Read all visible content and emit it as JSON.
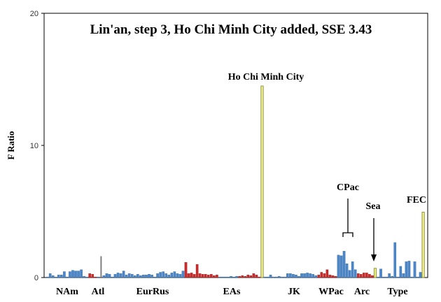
{
  "chart_data": {
    "type": "bar",
    "title": "Lin'an, step 3, Ho Chi Minh City added, SSE 3.43",
    "ylabel": "F Ratio",
    "ylim": [
      0,
      20
    ],
    "yticks": [
      "0",
      "10",
      "20"
    ],
    "groups": [
      "NAm",
      "Atl",
      "EurRus",
      "EAs",
      "JK",
      "WPac",
      "Arc",
      "Type"
    ],
    "annotations": {
      "hcmc": "Ho Chi Minh City",
      "cpac": "CPac",
      "sea": "Sea",
      "fec": "FEC"
    },
    "colors": {
      "blue": "#4a86c8",
      "red": "#cc2a2a",
      "yellow": "#f0f08c",
      "gray": "#808080"
    },
    "bars": [
      {
        "v": 0.05,
        "c": "blue"
      },
      {
        "v": 0.3,
        "c": "blue"
      },
      {
        "v": 0.15,
        "c": "blue"
      },
      {
        "v": 0.05,
        "c": "blue"
      },
      {
        "v": 0.2,
        "c": "blue"
      },
      {
        "v": 0.2,
        "c": "blue"
      },
      {
        "v": 0.45,
        "c": "blue"
      },
      {
        "v": 0.05,
        "c": "blue"
      },
      {
        "v": 0.45,
        "c": "blue"
      },
      {
        "v": 0.55,
        "c": "blue"
      },
      {
        "v": 0.5,
        "c": "blue"
      },
      {
        "v": 0.5,
        "c": "blue"
      },
      {
        "v": 0.6,
        "c": "blue"
      },
      {
        "v": 0.1,
        "c": "blue"
      },
      {
        "v": 0.05,
        "c": "blue"
      },
      {
        "v": 0.3,
        "c": "red"
      },
      {
        "v": 0.25,
        "c": "red"
      },
      {
        "v": 0.05,
        "c": "red"
      },
      {
        "v": 0.05,
        "c": "blue"
      },
      {
        "v": 1.6,
        "c": "gray"
      },
      {
        "v": 0.15,
        "c": "blue"
      },
      {
        "v": 0.3,
        "c": "blue"
      },
      {
        "v": 0.25,
        "c": "blue"
      },
      {
        "v": 0.05,
        "c": "blue"
      },
      {
        "v": 0.25,
        "c": "blue"
      },
      {
        "v": 0.35,
        "c": "blue"
      },
      {
        "v": 0.3,
        "c": "blue"
      },
      {
        "v": 0.5,
        "c": "blue"
      },
      {
        "v": 0.2,
        "c": "blue"
      },
      {
        "v": 0.3,
        "c": "blue"
      },
      {
        "v": 0.25,
        "c": "blue"
      },
      {
        "v": 0.15,
        "c": "blue"
      },
      {
        "v": 0.25,
        "c": "blue"
      },
      {
        "v": 0.15,
        "c": "blue"
      },
      {
        "v": 0.2,
        "c": "blue"
      },
      {
        "v": 0.2,
        "c": "blue"
      },
      {
        "v": 0.25,
        "c": "blue"
      },
      {
        "v": 0.2,
        "c": "blue"
      },
      {
        "v": 0.05,
        "c": "blue"
      },
      {
        "v": 0.3,
        "c": "blue"
      },
      {
        "v": 0.4,
        "c": "blue"
      },
      {
        "v": 0.45,
        "c": "blue"
      },
      {
        "v": 0.3,
        "c": "blue"
      },
      {
        "v": 0.2,
        "c": "blue"
      },
      {
        "v": 0.35,
        "c": "blue"
      },
      {
        "v": 0.45,
        "c": "blue"
      },
      {
        "v": 0.3,
        "c": "blue"
      },
      {
        "v": 0.25,
        "c": "blue"
      },
      {
        "v": 0.5,
        "c": "blue"
      },
      {
        "v": 1.15,
        "c": "red"
      },
      {
        "v": 0.3,
        "c": "red"
      },
      {
        "v": 0.35,
        "c": "red"
      },
      {
        "v": 0.25,
        "c": "red"
      },
      {
        "v": 1.0,
        "c": "red"
      },
      {
        "v": 0.3,
        "c": "red"
      },
      {
        "v": 0.25,
        "c": "red"
      },
      {
        "v": 0.25,
        "c": "red"
      },
      {
        "v": 0.2,
        "c": "red"
      },
      {
        "v": 0.25,
        "c": "red"
      },
      {
        "v": 0.15,
        "c": "red"
      },
      {
        "v": 0.2,
        "c": "red"
      },
      {
        "v": 0.05,
        "c": "blue"
      },
      {
        "v": 0.05,
        "c": "blue"
      },
      {
        "v": 0.05,
        "c": "blue"
      },
      {
        "v": 0.05,
        "c": "blue"
      },
      {
        "v": 0.1,
        "c": "blue"
      },
      {
        "v": 0.05,
        "c": "blue"
      },
      {
        "v": 0.1,
        "c": "blue"
      },
      {
        "v": 0.1,
        "c": "red"
      },
      {
        "v": 0.15,
        "c": "red"
      },
      {
        "v": 0.1,
        "c": "red"
      },
      {
        "v": 0.2,
        "c": "red"
      },
      {
        "v": 0.15,
        "c": "red"
      },
      {
        "v": 0.3,
        "c": "red"
      },
      {
        "v": 0.2,
        "c": "red"
      },
      {
        "v": 0.05,
        "c": "red"
      },
      {
        "v": 14.5,
        "c": "yellow"
      },
      {
        "v": 0.05,
        "c": "blue"
      },
      {
        "v": 0.05,
        "c": "blue"
      },
      {
        "v": 0.2,
        "c": "blue"
      },
      {
        "v": 0.05,
        "c": "blue"
      },
      {
        "v": 0.05,
        "c": "blue"
      },
      {
        "v": 0.1,
        "c": "blue"
      },
      {
        "v": 0.05,
        "c": "blue"
      },
      {
        "v": 0.05,
        "c": "blue"
      },
      {
        "v": 0.3,
        "c": "blue"
      },
      {
        "v": 0.3,
        "c": "blue"
      },
      {
        "v": 0.25,
        "c": "blue"
      },
      {
        "v": 0.2,
        "c": "blue"
      },
      {
        "v": 0.1,
        "c": "blue"
      },
      {
        "v": 0.3,
        "c": "blue"
      },
      {
        "v": 0.3,
        "c": "blue"
      },
      {
        "v": 0.35,
        "c": "blue"
      },
      {
        "v": 0.3,
        "c": "blue"
      },
      {
        "v": 0.25,
        "c": "blue"
      },
      {
        "v": 0.15,
        "c": "blue"
      },
      {
        "v": 0.2,
        "c": "red"
      },
      {
        "v": 0.4,
        "c": "red"
      },
      {
        "v": 0.3,
        "c": "red"
      },
      {
        "v": 0.6,
        "c": "red"
      },
      {
        "v": 0.2,
        "c": "red"
      },
      {
        "v": 0.15,
        "c": "red"
      },
      {
        "v": 0.1,
        "c": "red"
      },
      {
        "v": 1.7,
        "c": "blue"
      },
      {
        "v": 1.65,
        "c": "blue"
      },
      {
        "v": 2.0,
        "c": "blue"
      },
      {
        "v": 1.05,
        "c": "blue"
      },
      {
        "v": 0.55,
        "c": "blue"
      },
      {
        "v": 1.2,
        "c": "blue"
      },
      {
        "v": 0.6,
        "c": "blue"
      },
      {
        "v": 0.3,
        "c": "red"
      },
      {
        "v": 0.25,
        "c": "red"
      },
      {
        "v": 0.35,
        "c": "red"
      },
      {
        "v": 0.35,
        "c": "red"
      },
      {
        "v": 0.25,
        "c": "red"
      },
      {
        "v": 0.15,
        "c": "red"
      },
      {
        "v": 0.7,
        "c": "yellow"
      },
      {
        "v": 0.05,
        "c": "blue"
      },
      {
        "v": 0.65,
        "c": "blue"
      },
      {
        "v": 0.05,
        "c": "blue"
      },
      {
        "v": 0.05,
        "c": "blue"
      },
      {
        "v": 0.3,
        "c": "blue"
      },
      {
        "v": 0.1,
        "c": "blue"
      },
      {
        "v": 2.65,
        "c": "blue"
      },
      {
        "v": 0.05,
        "c": "blue"
      },
      {
        "v": 0.85,
        "c": "blue"
      },
      {
        "v": 0.3,
        "c": "blue"
      },
      {
        "v": 1.2,
        "c": "blue"
      },
      {
        "v": 1.25,
        "c": "blue"
      },
      {
        "v": 0.05,
        "c": "blue"
      },
      {
        "v": 1.2,
        "c": "blue"
      },
      {
        "v": 0.05,
        "c": "blue"
      },
      {
        "v": 0.4,
        "c": "blue"
      },
      {
        "v": 4.95,
        "c": "yellow"
      }
    ]
  }
}
